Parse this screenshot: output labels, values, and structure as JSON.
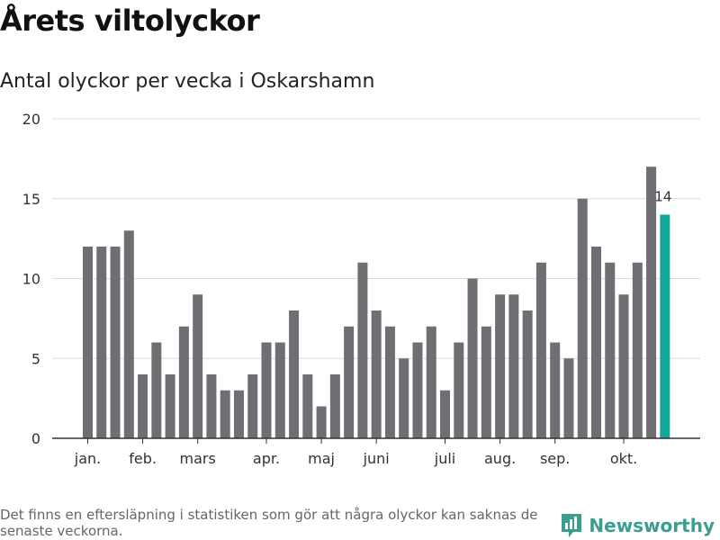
{
  "title": "Årets viltolyckor",
  "subtitle": "Antal olyckor per vecka i Oskarshamn",
  "footnote": "Det finns en eftersläpning i statistiken som gör att några olyckor kan saknas de senaste veckorna.",
  "brand": {
    "name": "Newsworthy",
    "icon": "newsworthy-logo-icon",
    "color": "#3a9e8f"
  },
  "chart_data": {
    "type": "bar",
    "title": "Årets viltolyckor",
    "subtitle": "Antal olyckor per vecka i Oskarshamn",
    "xlabel": "",
    "ylabel": "",
    "ylim": [
      0,
      20
    ],
    "yticks": [
      0,
      5,
      10,
      15,
      20
    ],
    "grid": true,
    "x_unit": "week",
    "month_labels": [
      {
        "label": "jan.",
        "week": 1
      },
      {
        "label": "feb.",
        "week": 5
      },
      {
        "label": "mars",
        "week": 9
      },
      {
        "label": "apr.",
        "week": 14
      },
      {
        "label": "maj",
        "week": 18
      },
      {
        "label": "juni",
        "week": 22
      },
      {
        "label": "juli",
        "week": 27
      },
      {
        "label": "aug.",
        "week": 31
      },
      {
        "label": "sep.",
        "week": 35
      },
      {
        "label": "okt.",
        "week": 40
      }
    ],
    "weeks": [
      1,
      2,
      3,
      4,
      5,
      6,
      7,
      8,
      9,
      10,
      11,
      12,
      13,
      14,
      15,
      16,
      17,
      18,
      19,
      20,
      21,
      22,
      23,
      24,
      25,
      26,
      27,
      28,
      29,
      30,
      31,
      32,
      33,
      34,
      35,
      36,
      37,
      38,
      39,
      40,
      41,
      42,
      43
    ],
    "values": [
      12,
      12,
      12,
      13,
      4,
      6,
      4,
      7,
      9,
      4,
      3,
      3,
      4,
      6,
      6,
      8,
      4,
      2,
      4,
      7,
      11,
      8,
      7,
      5,
      6,
      7,
      3,
      6,
      10,
      7,
      9,
      9,
      8,
      11,
      6,
      5,
      15,
      12,
      11,
      9,
      11,
      17,
      14
    ],
    "bar_color": "#6f6e73",
    "highlight": {
      "index": 42,
      "label": "14",
      "color": "#14a69a"
    }
  }
}
